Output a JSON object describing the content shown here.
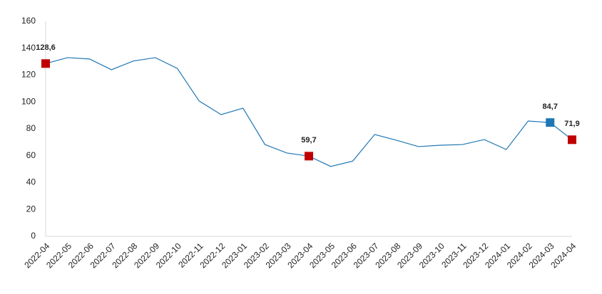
{
  "chart_data": {
    "type": "line",
    "categories": [
      "2022-04",
      "2022-05",
      "2022-06",
      "2022-07",
      "2022-08",
      "2022-09",
      "2022-10",
      "2022-11",
      "2022-12",
      "2023-01",
      "2023-02",
      "2023-03",
      "2023-04",
      "2023-05",
      "2023-06",
      "2023-07",
      "2023-08",
      "2023-09",
      "2023-10",
      "2023-11",
      "2023-12",
      "2024-01",
      "2024-02",
      "2024-03",
      "2024-04"
    ],
    "values": [
      128.6,
      133,
      132,
      124,
      130.5,
      133,
      125,
      100.7,
      90.6,
      95.4,
      68.3,
      62,
      59.7,
      52,
      56,
      75.8,
      71.5,
      66.8,
      67.8,
      68.3,
      72,
      64.6,
      85.8,
      84.7,
      71.9
    ],
    "value_labels": [
      "128,6",
      null,
      null,
      null,
      null,
      null,
      null,
      null,
      null,
      null,
      null,
      null,
      "59,7",
      null,
      null,
      null,
      null,
      null,
      null,
      null,
      null,
      null,
      null,
      "84,7",
      "71,9"
    ],
    "marker_colors": [
      "#c00000",
      null,
      null,
      null,
      null,
      null,
      null,
      null,
      null,
      null,
      null,
      null,
      "#c00000",
      null,
      null,
      null,
      null,
      null,
      null,
      null,
      null,
      null,
      null,
      "#1f77b4",
      "#c00000"
    ],
    "color": "#1f77b4",
    "ylim": [
      0,
      160
    ],
    "yticks": [
      0,
      20,
      40,
      60,
      80,
      100,
      120,
      140,
      160
    ],
    "grid": false
  }
}
